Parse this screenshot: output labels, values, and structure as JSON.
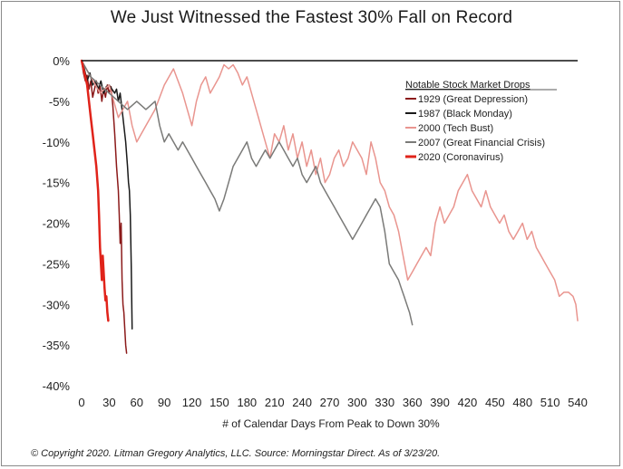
{
  "chart_data": {
    "type": "line",
    "title": "We Just Witnessed the Fastest 30% Fall on Record",
    "xlabel": "# of Calendar Days From Peak to Down 30%",
    "ylabel": "",
    "xlim": [
      0,
      540
    ],
    "ylim": [
      -40,
      0
    ],
    "x_ticks": [
      0,
      30,
      60,
      90,
      120,
      150,
      180,
      210,
      240,
      270,
      300,
      330,
      360,
      390,
      420,
      450,
      480,
      510,
      540
    ],
    "x_tick_labels": [
      "0",
      "30",
      "60",
      "90",
      "120",
      "150",
      "180",
      "210",
      "240",
      "270",
      "300",
      "330",
      "360",
      "390",
      "420",
      "450",
      "480",
      "510",
      "540"
    ],
    "y_ticks": [
      0,
      -5,
      -10,
      -15,
      -20,
      -25,
      -30,
      -35,
      -40
    ],
    "y_tick_labels": [
      "0%",
      "-5%",
      "-10%",
      "-15%",
      "-20%",
      "-25%",
      "-30%",
      "-35%",
      "-40%"
    ],
    "legend_title": "Notable Stock Market Drops",
    "legend_position": "top-right",
    "series": [
      {
        "name": "1929 (Great Depression)",
        "color": "#8b1a1a",
        "width": 1.5,
        "points": [
          [
            0,
            0
          ],
          [
            2,
            -1.5
          ],
          [
            4,
            -2.5
          ],
          [
            6,
            -1.8
          ],
          [
            8,
            -3.5
          ],
          [
            10,
            -2.5
          ],
          [
            12,
            -4.5
          ],
          [
            14,
            -3.5
          ],
          [
            16,
            -2.5
          ],
          [
            18,
            -4
          ],
          [
            20,
            -3
          ],
          [
            22,
            -5
          ],
          [
            24,
            -3.5
          ],
          [
            26,
            -4.5
          ],
          [
            28,
            -3
          ],
          [
            30,
            -4
          ],
          [
            32,
            -3.2
          ],
          [
            34,
            -5.5
          ],
          [
            36,
            -9
          ],
          [
            38,
            -13
          ],
          [
            40,
            -16
          ],
          [
            41,
            -19
          ],
          [
            42,
            -22.5
          ],
          [
            43,
            -20
          ],
          [
            44,
            -27
          ],
          [
            45,
            -30
          ],
          [
            46,
            -31
          ],
          [
            47,
            -33
          ],
          [
            48,
            -35
          ],
          [
            49,
            -36
          ]
        ]
      },
      {
        "name": "1987 (Black Monday)",
        "color": "#1a1a1a",
        "width": 1.5,
        "points": [
          [
            0,
            0
          ],
          [
            3,
            -1
          ],
          [
            6,
            -2.5
          ],
          [
            9,
            -1.5
          ],
          [
            12,
            -3
          ],
          [
            15,
            -2.5
          ],
          [
            18,
            -3.5
          ],
          [
            21,
            -2.5
          ],
          [
            24,
            -4
          ],
          [
            27,
            -3.2
          ],
          [
            30,
            -3
          ],
          [
            33,
            -3.5
          ],
          [
            36,
            -4
          ],
          [
            38,
            -3.5
          ],
          [
            40,
            -5
          ],
          [
            42,
            -4
          ],
          [
            44,
            -6
          ],
          [
            46,
            -8
          ],
          [
            48,
            -10
          ],
          [
            50,
            -13
          ],
          [
            51,
            -15
          ],
          [
            52,
            -16
          ],
          [
            53,
            -19
          ],
          [
            54,
            -25
          ],
          [
            55,
            -33
          ]
        ]
      },
      {
        "name": "2000 (Tech Bust)",
        "color": "#e9958f",
        "width": 1.5,
        "points": [
          [
            0,
            0
          ],
          [
            10,
            -2
          ],
          [
            20,
            -4
          ],
          [
            30,
            -3
          ],
          [
            40,
            -7
          ],
          [
            50,
            -5
          ],
          [
            55,
            -8
          ],
          [
            60,
            -10
          ],
          [
            70,
            -8
          ],
          [
            80,
            -6
          ],
          [
            90,
            -3
          ],
          [
            100,
            -1
          ],
          [
            110,
            -4
          ],
          [
            115,
            -6
          ],
          [
            120,
            -8
          ],
          [
            125,
            -5
          ],
          [
            130,
            -3
          ],
          [
            135,
            -2
          ],
          [
            140,
            -4
          ],
          [
            145,
            -3
          ],
          [
            150,
            -2
          ],
          [
            155,
            -0.5
          ],
          [
            160,
            -1
          ],
          [
            165,
            -0.5
          ],
          [
            170,
            -1.5
          ],
          [
            175,
            -3
          ],
          [
            180,
            -2
          ],
          [
            185,
            -4
          ],
          [
            190,
            -6
          ],
          [
            195,
            -8
          ],
          [
            200,
            -10
          ],
          [
            205,
            -12
          ],
          [
            210,
            -9
          ],
          [
            215,
            -10
          ],
          [
            220,
            -8
          ],
          [
            225,
            -11
          ],
          [
            230,
            -9
          ],
          [
            235,
            -12
          ],
          [
            240,
            -10
          ],
          [
            245,
            -13
          ],
          [
            250,
            -11
          ],
          [
            255,
            -14
          ],
          [
            260,
            -12
          ],
          [
            265,
            -15
          ],
          [
            270,
            -14
          ],
          [
            275,
            -12
          ],
          [
            280,
            -11
          ],
          [
            285,
            -13
          ],
          [
            290,
            -12
          ],
          [
            295,
            -10
          ],
          [
            300,
            -11
          ],
          [
            305,
            -12
          ],
          [
            310,
            -14
          ],
          [
            315,
            -10
          ],
          [
            320,
            -12
          ],
          [
            325,
            -15
          ],
          [
            330,
            -16
          ],
          [
            335,
            -18
          ],
          [
            340,
            -19
          ],
          [
            345,
            -21
          ],
          [
            350,
            -24
          ],
          [
            355,
            -27
          ],
          [
            360,
            -26
          ],
          [
            365,
            -25
          ],
          [
            370,
            -24
          ],
          [
            375,
            -23
          ],
          [
            380,
            -24
          ],
          [
            385,
            -20
          ],
          [
            390,
            -18
          ],
          [
            395,
            -20
          ],
          [
            400,
            -19
          ],
          [
            405,
            -18
          ],
          [
            410,
            -16
          ],
          [
            415,
            -15
          ],
          [
            420,
            -14
          ],
          [
            425,
            -16
          ],
          [
            430,
            -17
          ],
          [
            435,
            -18
          ],
          [
            440,
            -16
          ],
          [
            445,
            -18
          ],
          [
            450,
            -19
          ],
          [
            455,
            -20
          ],
          [
            460,
            -19
          ],
          [
            465,
            -21
          ],
          [
            470,
            -22
          ],
          [
            475,
            -21
          ],
          [
            480,
            -20
          ],
          [
            485,
            -22
          ],
          [
            490,
            -21
          ],
          [
            495,
            -23
          ],
          [
            500,
            -24
          ],
          [
            505,
            -25
          ],
          [
            510,
            -26
          ],
          [
            515,
            -27
          ],
          [
            520,
            -29
          ],
          [
            525,
            -28.5
          ],
          [
            530,
            -28.5
          ],
          [
            535,
            -29
          ],
          [
            538,
            -30
          ],
          [
            540,
            -32
          ]
        ]
      },
      {
        "name": "2007 (Great Financial Crisis)",
        "color": "#7a7a78",
        "width": 1.5,
        "points": [
          [
            0,
            0
          ],
          [
            10,
            -2
          ],
          [
            20,
            -3
          ],
          [
            30,
            -4
          ],
          [
            40,
            -5
          ],
          [
            50,
            -6
          ],
          [
            60,
            -5
          ],
          [
            70,
            -6
          ],
          [
            80,
            -5
          ],
          [
            85,
            -8
          ],
          [
            90,
            -10
          ],
          [
            95,
            -9
          ],
          [
            100,
            -10
          ],
          [
            105,
            -11
          ],
          [
            110,
            -10
          ],
          [
            115,
            -11
          ],
          [
            120,
            -12
          ],
          [
            125,
            -13
          ],
          [
            130,
            -14
          ],
          [
            135,
            -15
          ],
          [
            140,
            -16
          ],
          [
            145,
            -17
          ],
          [
            150,
            -18.5
          ],
          [
            155,
            -17
          ],
          [
            160,
            -15
          ],
          [
            165,
            -13
          ],
          [
            170,
            -12
          ],
          [
            175,
            -11
          ],
          [
            180,
            -10
          ],
          [
            185,
            -12
          ],
          [
            190,
            -13
          ],
          [
            195,
            -12
          ],
          [
            200,
            -11
          ],
          [
            205,
            -12
          ],
          [
            210,
            -11
          ],
          [
            215,
            -10
          ],
          [
            220,
            -11
          ],
          [
            225,
            -12
          ],
          [
            230,
            -13
          ],
          [
            235,
            -12
          ],
          [
            240,
            -14
          ],
          [
            245,
            -15
          ],
          [
            250,
            -14
          ],
          [
            255,
            -13
          ],
          [
            260,
            -15
          ],
          [
            265,
            -16
          ],
          [
            270,
            -17
          ],
          [
            275,
            -18
          ],
          [
            280,
            -19
          ],
          [
            285,
            -20
          ],
          [
            290,
            -21
          ],
          [
            295,
            -22
          ],
          [
            300,
            -21
          ],
          [
            305,
            -20
          ],
          [
            310,
            -19
          ],
          [
            315,
            -18
          ],
          [
            320,
            -17
          ],
          [
            325,
            -18
          ],
          [
            330,
            -21
          ],
          [
            335,
            -25
          ],
          [
            340,
            -26
          ],
          [
            345,
            -27
          ],
          [
            348,
            -28
          ],
          [
            351,
            -29
          ],
          [
            354,
            -30
          ],
          [
            357,
            -31
          ],
          [
            360,
            -32.5
          ]
        ]
      },
      {
        "name": "2020 (Coronavirus)",
        "color": "#e0231a",
        "width": 2.5,
        "points": [
          [
            0,
            0
          ],
          [
            2,
            -1
          ],
          [
            4,
            -2
          ],
          [
            6,
            -3
          ],
          [
            8,
            -5
          ],
          [
            10,
            -7
          ],
          [
            12,
            -9
          ],
          [
            14,
            -11
          ],
          [
            16,
            -13
          ],
          [
            18,
            -16
          ],
          [
            19,
            -19
          ],
          [
            20,
            -23
          ],
          [
            21,
            -25
          ],
          [
            22,
            -27
          ],
          [
            23,
            -24
          ],
          [
            24,
            -26
          ],
          [
            25,
            -28
          ],
          [
            26,
            -29.5
          ],
          [
            27,
            -29
          ],
          [
            28,
            -31
          ],
          [
            29,
            -32
          ]
        ]
      }
    ]
  },
  "footer": "© Copyright 2020. Litman Gregory Analytics, LLC. Source: Morningstar Direct. As of 3/23/20."
}
